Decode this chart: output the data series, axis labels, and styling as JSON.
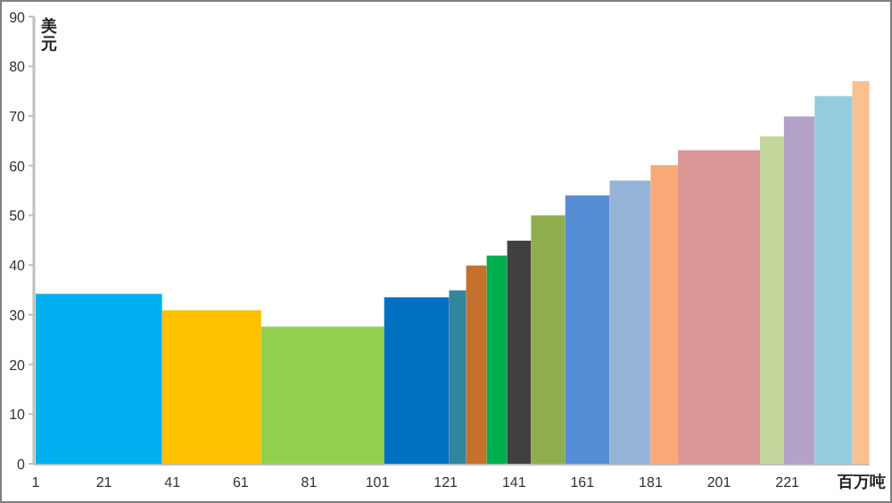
{
  "chart_data": {
    "type": "histogram",
    "ylabel": "美元",
    "xlabel": "百万吨",
    "bins": [
      1,
      38,
      67,
      103,
      122,
      127,
      133,
      139,
      146,
      156,
      169,
      181,
      189,
      213,
      220,
      229,
      240,
      245
    ],
    "values": [
      34.2,
      30.9,
      27.6,
      33.5,
      34.9,
      39.9,
      41.9,
      44.9,
      50.0,
      54.0,
      57.0,
      60.1,
      63.1,
      65.9,
      69.9,
      74.0,
      77.0
    ],
    "colors": [
      "#00b0f0",
      "#ffc000",
      "#92d050",
      "#0070c0",
      "#31859c",
      "#c5702c",
      "#00b050",
      "#404040",
      "#8fad4f",
      "#558ed5",
      "#95b3d7",
      "#f9a878",
      "#d99694",
      "#c3d69b",
      "#b3a2c7",
      "#93cddd",
      "#fac090"
    ],
    "xlim": [
      1,
      245
    ],
    "ylim": [
      0,
      90
    ],
    "xticks": [
      1,
      21,
      41,
      61,
      81,
      101,
      121,
      141,
      161,
      181,
      201,
      221
    ],
    "yticks": [
      0,
      10,
      20,
      30,
      40,
      50,
      60,
      70,
      80,
      90
    ],
    "grid": false
  }
}
